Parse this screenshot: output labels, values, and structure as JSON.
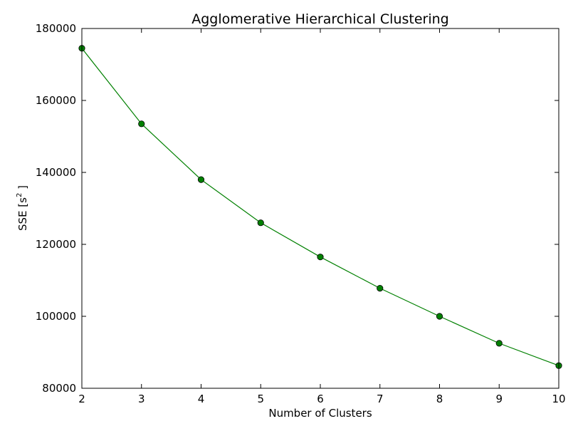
{
  "chart_data": {
    "type": "line",
    "title": "Agglomerative Hierarchical Clustering",
    "xlabel": "Number of Clusters",
    "ylabel_main": "SSE [s",
    "ylabel_sup": "2",
    "ylabel_end": " ]",
    "xlim": [
      2,
      10
    ],
    "ylim": [
      80000,
      180000
    ],
    "x_ticks": [
      2,
      3,
      4,
      5,
      6,
      7,
      8,
      9,
      10
    ],
    "y_ticks": [
      80000,
      100000,
      120000,
      140000,
      160000,
      180000
    ],
    "grid": false,
    "series": [
      {
        "color": "#008000",
        "marker": "circle",
        "x": [
          2,
          3,
          4,
          5,
          6,
          7,
          8,
          9,
          10
        ],
        "y": [
          174500,
          153500,
          138000,
          126000,
          116500,
          107800,
          100000,
          92500,
          86300
        ]
      }
    ]
  }
}
